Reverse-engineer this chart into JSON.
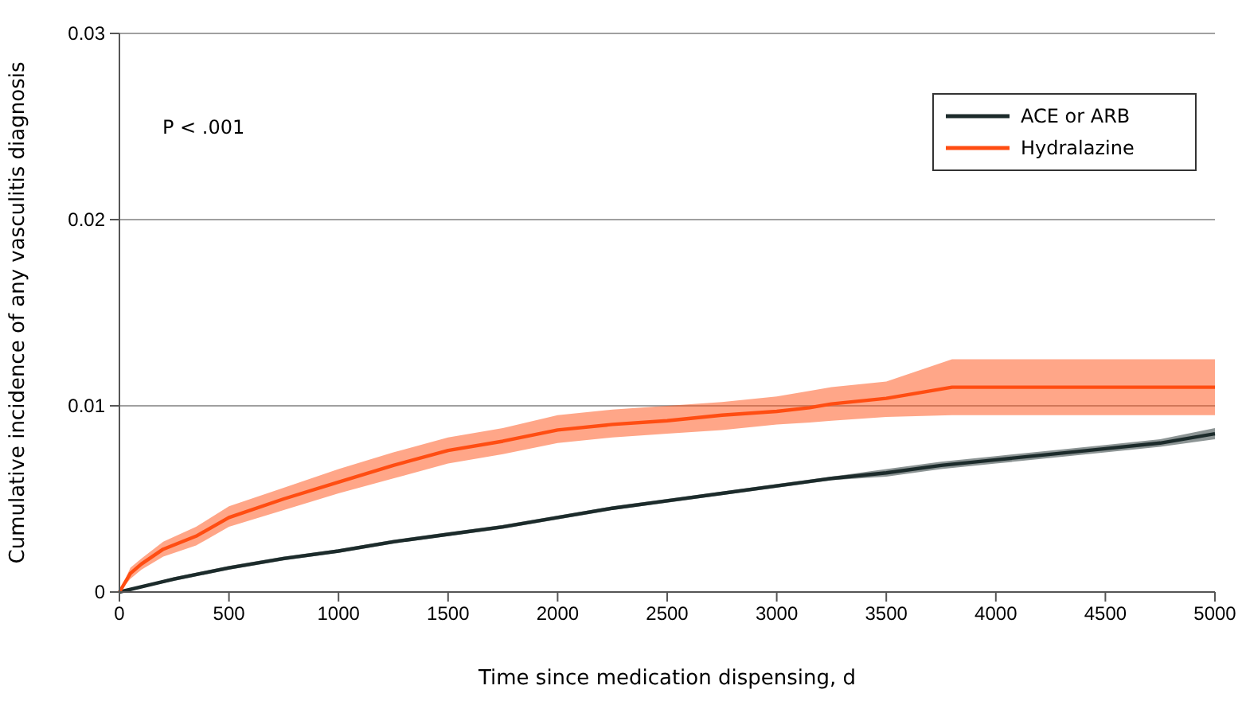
{
  "chart_data": {
    "type": "line",
    "xlabel": "Time since medication dispensing, d",
    "ylabel": "Cumulative incidence of any vasculitis diagnosis",
    "xlim": [
      0,
      5000
    ],
    "xticks": [
      0,
      500,
      1000,
      1500,
      2000,
      2500,
      3000,
      3500,
      4000,
      4500,
      5000
    ],
    "ylim": [
      0,
      0.03
    ],
    "yticks": [
      0,
      0.01,
      0.02,
      0.03
    ],
    "grid": "y",
    "legend": "top right",
    "annotations": [
      "P < .001"
    ],
    "series": [
      {
        "name": "ACE or ARB",
        "color": "#1c2b2b",
        "x": [
          0,
          250,
          500,
          750,
          1000,
          1250,
          1500,
          1750,
          2000,
          2250,
          2500,
          2750,
          3000,
          3250,
          3500,
          3750,
          4000,
          4250,
          4500,
          4750,
          5000
        ],
        "values": [
          0,
          0.0007,
          0.0013,
          0.0018,
          0.0022,
          0.0027,
          0.0031,
          0.0035,
          0.004,
          0.0045,
          0.0049,
          0.0053,
          0.0057,
          0.0061,
          0.0064,
          0.0068,
          0.0071,
          0.0074,
          0.0077,
          0.008,
          0.0085
        ],
        "lower": [
          0,
          0.0006,
          0.0012,
          0.0017,
          0.0021,
          0.0026,
          0.003,
          0.0034,
          0.0039,
          0.0044,
          0.0048,
          0.0052,
          0.0056,
          0.006,
          0.0062,
          0.0066,
          0.0069,
          0.0072,
          0.0075,
          0.0078,
          0.0082
        ],
        "upper": [
          0,
          0.0008,
          0.0014,
          0.0019,
          0.0023,
          0.0028,
          0.0032,
          0.0036,
          0.0041,
          0.0046,
          0.005,
          0.0054,
          0.0058,
          0.0062,
          0.0066,
          0.007,
          0.0073,
          0.0076,
          0.0079,
          0.0082,
          0.0088
        ]
      },
      {
        "name": "Hydralazine",
        "color": "#ff4d12",
        "x": [
          0,
          50,
          100,
          200,
          350,
          500,
          750,
          1000,
          1250,
          1500,
          1750,
          2000,
          2250,
          2500,
          2750,
          3000,
          3150,
          3250,
          3500,
          3800,
          5000
        ],
        "values": [
          0,
          0.001,
          0.0015,
          0.0023,
          0.003,
          0.004,
          0.005,
          0.0059,
          0.0068,
          0.0076,
          0.0081,
          0.0087,
          0.009,
          0.0092,
          0.0095,
          0.0097,
          0.0099,
          0.0101,
          0.0104,
          0.011,
          0.011
        ],
        "lower": [
          0,
          0.0007,
          0.0012,
          0.0019,
          0.0025,
          0.0035,
          0.0044,
          0.0053,
          0.0061,
          0.0069,
          0.0074,
          0.008,
          0.0083,
          0.0085,
          0.0087,
          0.009,
          0.0091,
          0.0092,
          0.0094,
          0.0095,
          0.0095
        ],
        "upper": [
          0,
          0.0013,
          0.0018,
          0.0027,
          0.0035,
          0.0046,
          0.0056,
          0.0066,
          0.0075,
          0.0083,
          0.0088,
          0.0095,
          0.0098,
          0.01,
          0.0102,
          0.0105,
          0.0108,
          0.011,
          0.0113,
          0.0125,
          0.0125
        ]
      }
    ]
  }
}
